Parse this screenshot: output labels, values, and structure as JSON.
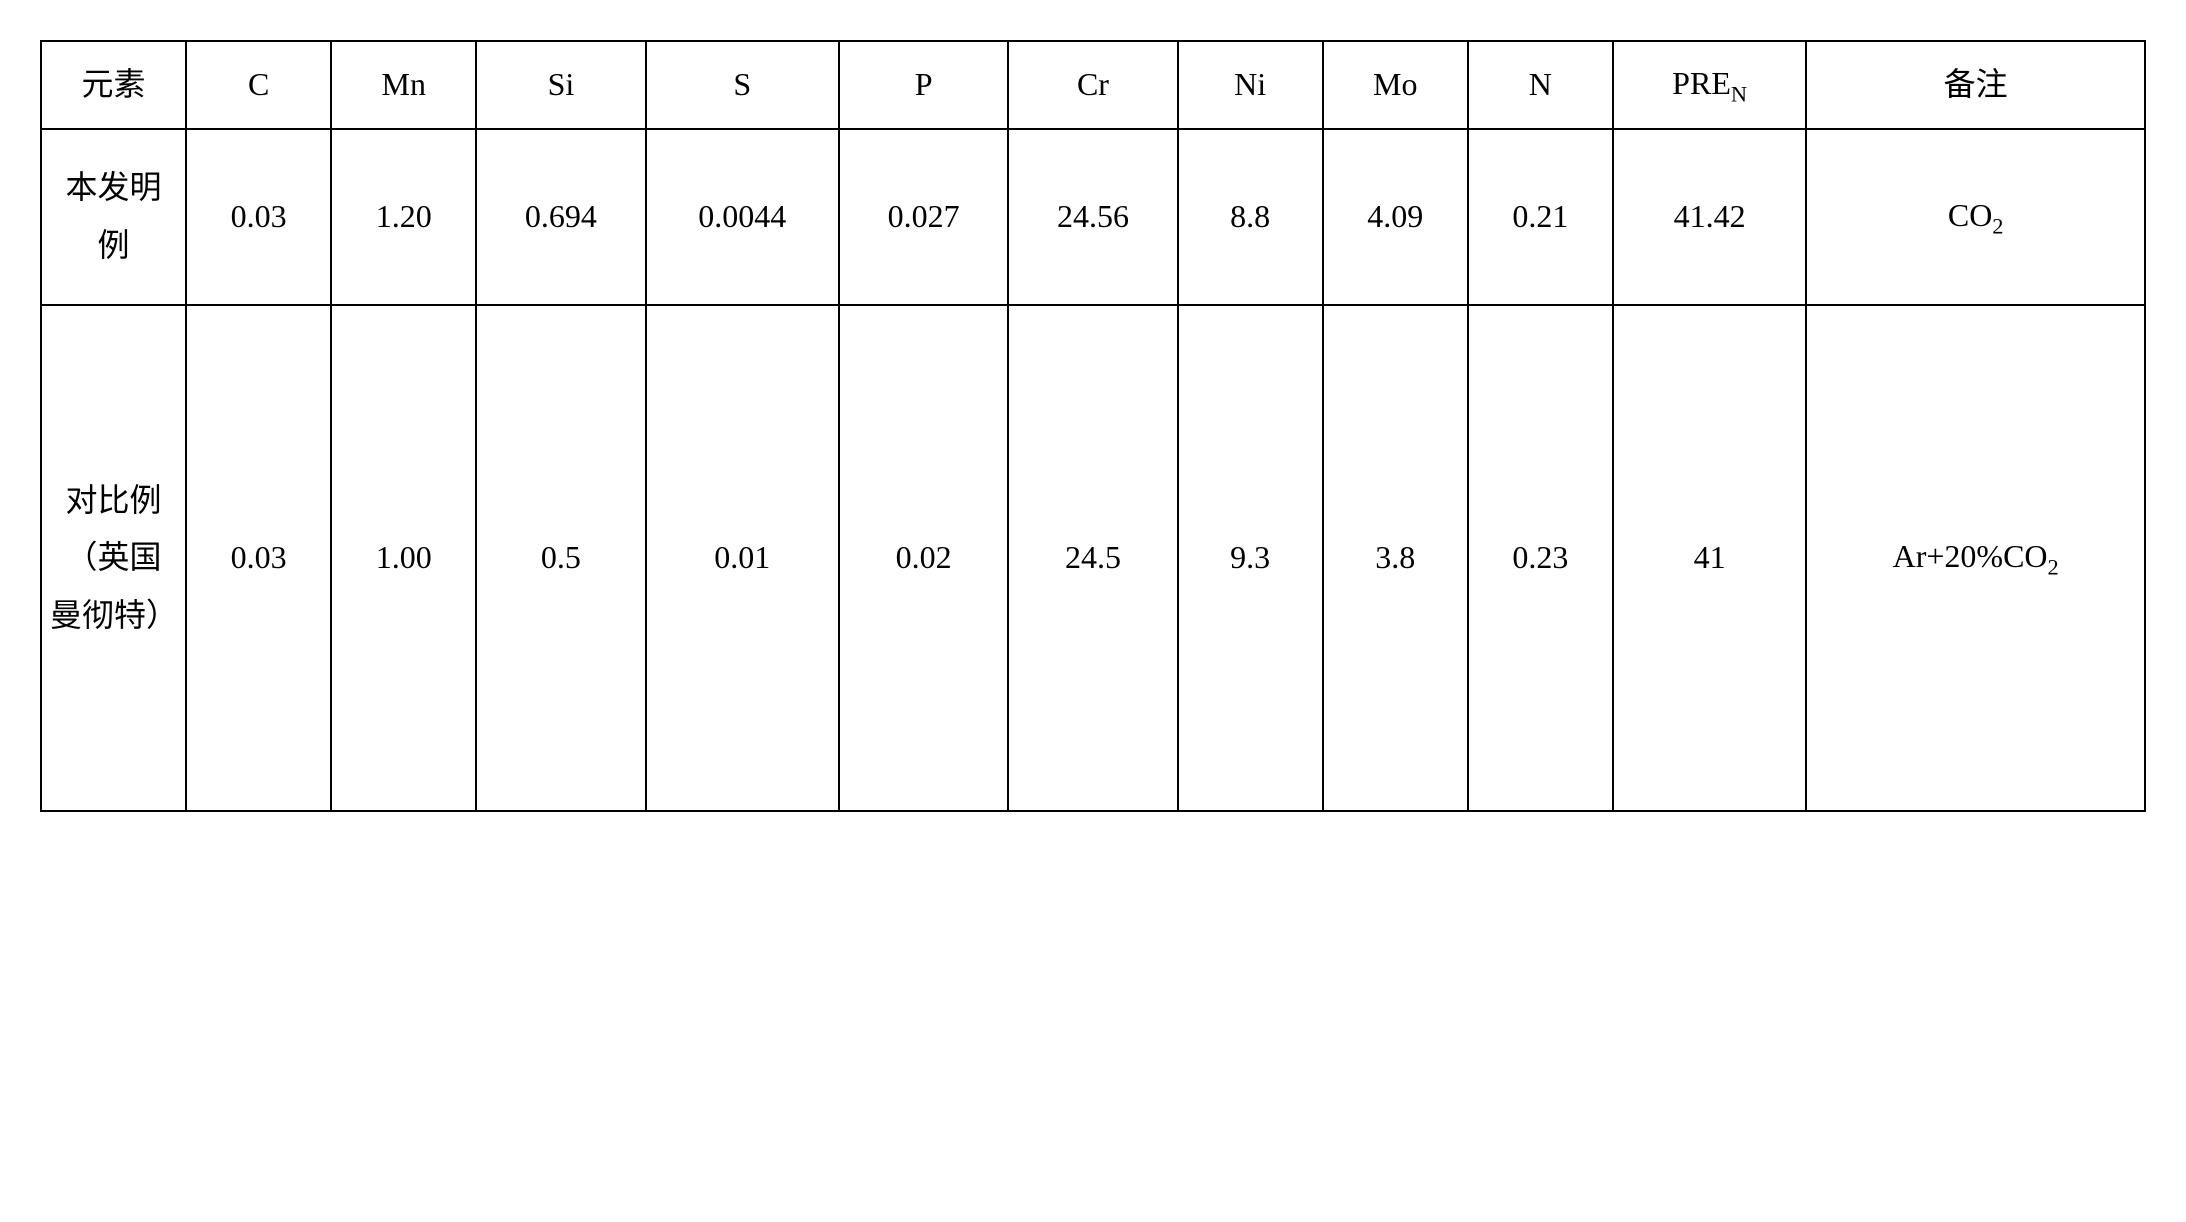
{
  "table": {
    "headers": [
      "元素",
      "C",
      "Mn",
      "Si",
      "S",
      "P",
      "Cr",
      "Ni",
      "Mo",
      "N",
      "PRE<sub>N</sub>",
      "备注"
    ],
    "rows": [
      {
        "label": "本发明例",
        "values": [
          "0.03",
          "1.20",
          "0.694",
          "0.0044",
          "0.027",
          "24.56",
          "8.8",
          "4.09",
          "0.21",
          "41.42",
          "CO<sub>2</sub>"
        ]
      },
      {
        "label": "对比例（英国曼彻特）",
        "values": [
          "0.03",
          "1.00",
          "0.5",
          "0.01",
          "0.02",
          "24.5",
          "9.3",
          "3.8",
          "0.23",
          "41",
          "Ar+20%CO<sub>2</sub>"
        ]
      }
    ],
    "column_widths": [
      "6%",
      "6%",
      "6%",
      "7%",
      "8%",
      "7%",
      "7%",
      "6%",
      "6%",
      "6%",
      "8%",
      "14%"
    ],
    "border_color": "#000000",
    "background_color": "#ffffff",
    "font_size_header": 32,
    "font_size_cell": 32,
    "font_family": "SimSun, Times New Roman, serif"
  }
}
